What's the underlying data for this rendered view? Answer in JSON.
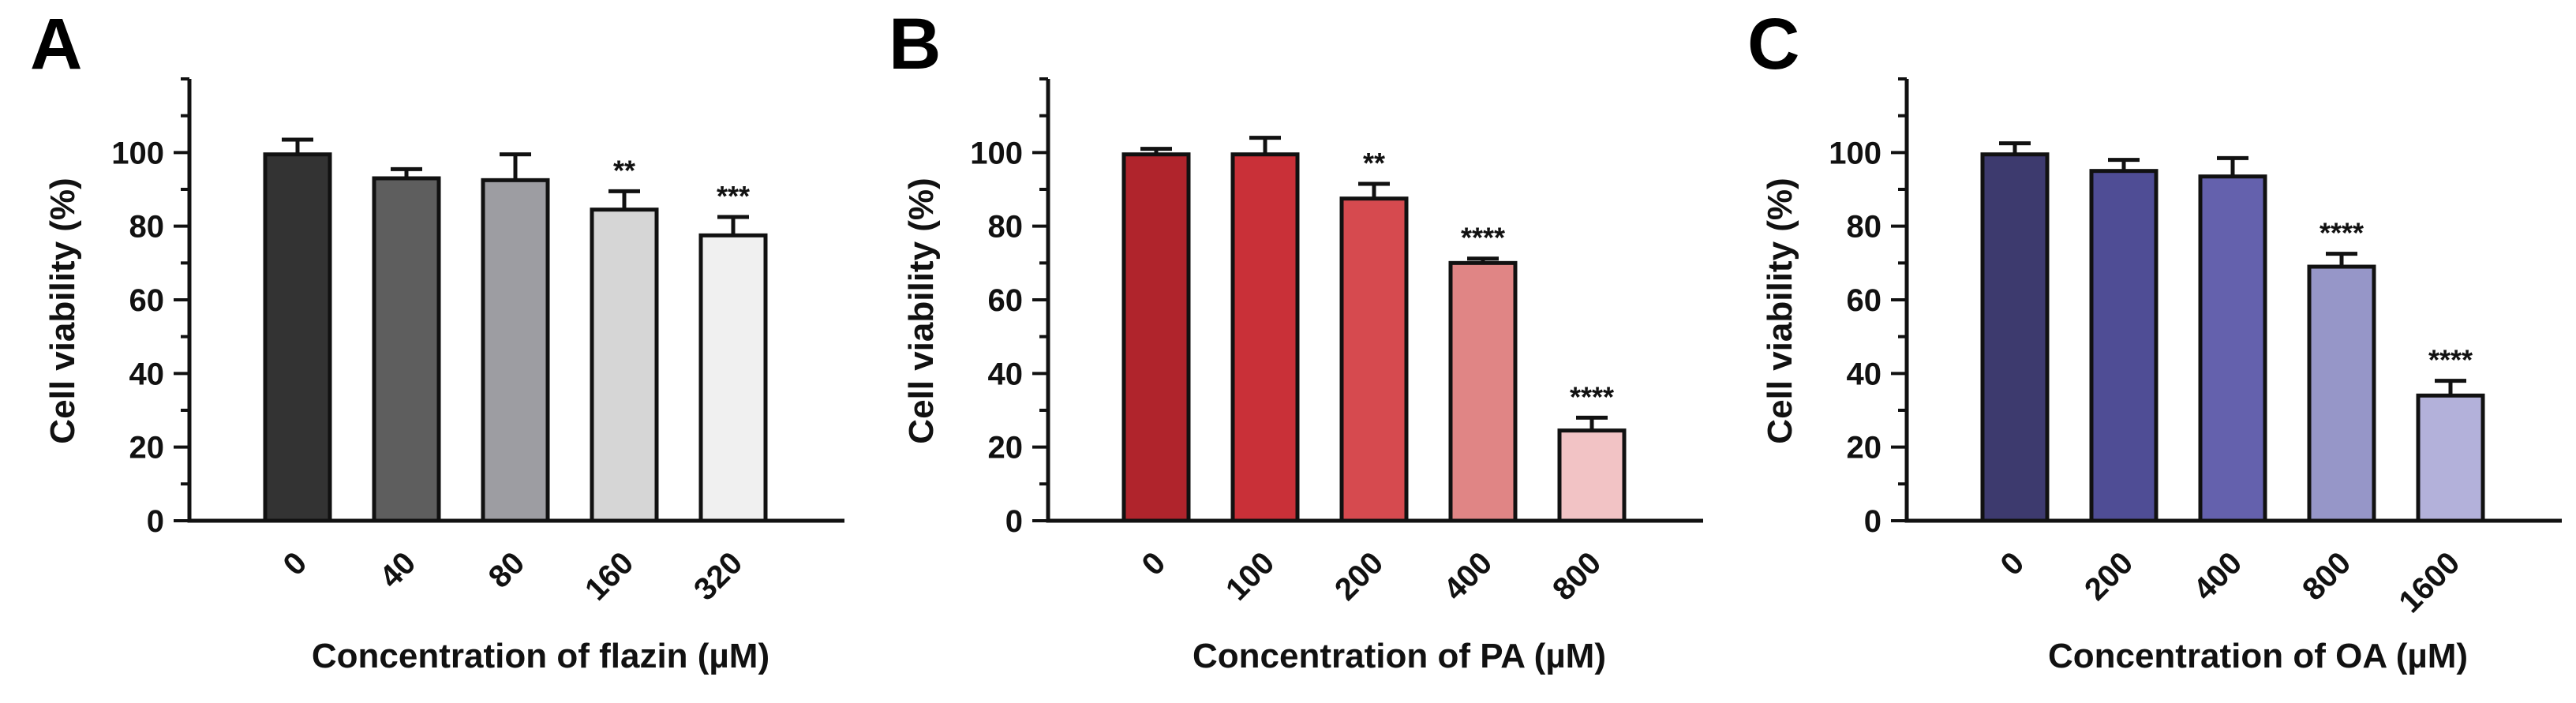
{
  "chart_data": [
    {
      "type": "bar",
      "panel_label": "A",
      "ylabel": "Cell viability (%)",
      "xlabel": "Concentration of flazin (µM)",
      "ylim": [
        0,
        120
      ],
      "yticks": [
        0,
        20,
        40,
        60,
        80,
        100
      ],
      "categories": [
        "0",
        "40",
        "80",
        "160",
        "320"
      ],
      "values": [
        99.5,
        93,
        92.5,
        84.5,
        77.5
      ],
      "errors": [
        4,
        2.5,
        7,
        5,
        5
      ],
      "significance": [
        "",
        "",
        "",
        "**",
        "***"
      ],
      "colors": [
        "#333333",
        "#5e5e5e",
        "#9d9da2",
        "#d6d6d6",
        "#f0f0f0"
      ]
    },
    {
      "type": "bar",
      "panel_label": "B",
      "ylabel": "Cell viability (%)",
      "xlabel": "Concentration of PA (µM)",
      "ylim": [
        0,
        120
      ],
      "yticks": [
        0,
        20,
        40,
        60,
        80,
        100
      ],
      "categories": [
        "0",
        "100",
        "200",
        "400",
        "800"
      ],
      "values": [
        99.5,
        99.5,
        87.5,
        70,
        24.5
      ],
      "errors": [
        1.5,
        4.5,
        4,
        1.2,
        3.5
      ],
      "significance": [
        "",
        "",
        "**",
        "****",
        "****"
      ],
      "colors": [
        "#b0242c",
        "#c93038",
        "#d64a4f",
        "#e08585",
        "#f2c3c5"
      ]
    },
    {
      "type": "bar",
      "panel_label": "C",
      "ylabel": "Cell viability (%)",
      "xlabel": "Concentration of OA (µM)",
      "ylim": [
        0,
        120
      ],
      "yticks": [
        0,
        20,
        40,
        60,
        80,
        100
      ],
      "categories": [
        "0",
        "200",
        "400",
        "800",
        "1600"
      ],
      "values": [
        99.5,
        95,
        93.5,
        69,
        34
      ],
      "errors": [
        3,
        3,
        5,
        3.5,
        4
      ],
      "significance": [
        "",
        "",
        "",
        "****",
        "****"
      ],
      "colors": [
        "#3d3a6e",
        "#4f4d95",
        "#6461ad",
        "#9696c8",
        "#b3b1da"
      ]
    }
  ]
}
